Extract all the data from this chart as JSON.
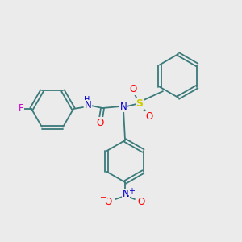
{
  "background_color": "#ebebeb",
  "bond_color": "#3a7a7a",
  "atom_colors": {
    "N": "#0000cc",
    "O": "#ff0000",
    "S": "#cccc00",
    "F": "#cc00cc"
  },
  "figsize": [
    3.0,
    3.0
  ],
  "dpi": 100
}
